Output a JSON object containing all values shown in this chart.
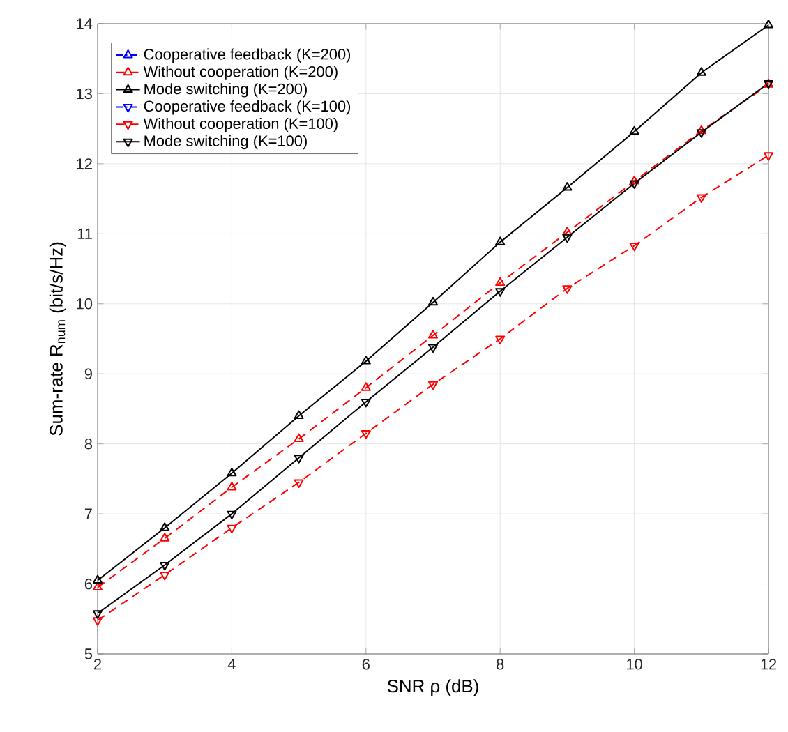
{
  "chart_data": {
    "type": "line",
    "xlabel": "SNR ρ (dB)",
    "ylabel": "Sum-rate R$_{num}$ (bit/s/Hz)",
    "x": [
      2,
      3,
      4,
      5,
      6,
      7,
      8,
      9,
      10,
      11,
      12
    ],
    "xlim": [
      2,
      12
    ],
    "xticks": [
      2,
      4,
      6,
      8,
      10,
      12
    ],
    "ylim": [
      5,
      14
    ],
    "yticks": [
      5,
      6,
      7,
      8,
      9,
      10,
      11,
      12,
      13,
      14
    ],
    "grid": true,
    "legend": "top left",
    "series": [
      {
        "name": "Cooperative feedback (K=200)",
        "color": "#0000ff",
        "marker": "triangle",
        "line_style": "dashdot",
        "values": [
          null,
          null,
          null,
          null,
          null,
          null,
          null,
          null,
          null,
          null,
          null
        ]
      },
      {
        "name": "Without cooperation (K=200)",
        "color": "#ff0000",
        "marker": "triangle",
        "line_style": "dashed",
        "values": [
          5.95,
          6.65,
          7.38,
          8.07,
          8.8,
          9.55,
          10.3,
          11.02,
          11.75,
          12.47,
          13.13
        ]
      },
      {
        "name": "Mode switching (K=200)",
        "color": "#000000",
        "marker": "triangle",
        "line_style": "solid",
        "values": [
          6.05,
          6.8,
          7.58,
          8.4,
          9.18,
          10.02,
          10.88,
          11.66,
          12.46,
          13.3,
          13.98
        ]
      },
      {
        "name": "Cooperative feedback (K=100)",
        "color": "#0000ff",
        "marker": "triangle-down",
        "line_style": "dashdot",
        "values": [
          null,
          null,
          null,
          null,
          null,
          null,
          null,
          null,
          null,
          null,
          null
        ]
      },
      {
        "name": "Without cooperation (K=100)",
        "color": "#ff0000",
        "marker": "triangle-down",
        "line_style": "dashed",
        "values": [
          5.48,
          6.13,
          6.8,
          7.45,
          8.15,
          8.85,
          9.5,
          10.22,
          10.83,
          11.52,
          12.12
        ]
      },
      {
        "name": "Mode switching (K=100)",
        "color": "#000000",
        "marker": "triangle-down",
        "line_style": "solid",
        "values": [
          5.58,
          6.27,
          7.0,
          7.8,
          8.6,
          9.38,
          10.18,
          10.95,
          11.72,
          12.45,
          13.15
        ]
      }
    ]
  }
}
